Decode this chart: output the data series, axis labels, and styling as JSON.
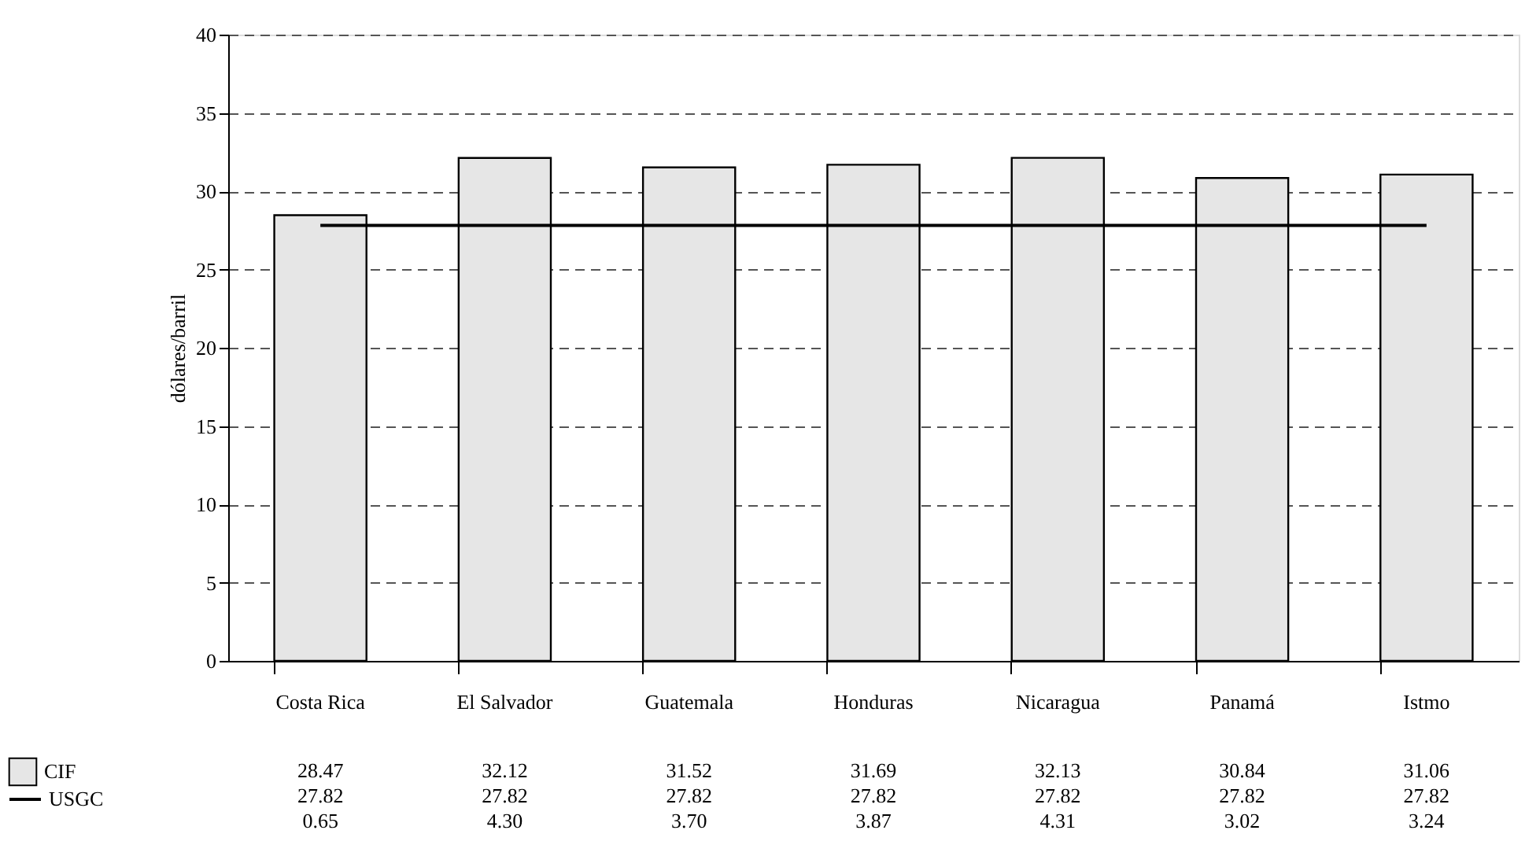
{
  "chart_data": {
    "type": "bar",
    "ylabel": "dólares/barril",
    "categories": [
      "Costa Rica",
      "El Salvador",
      "Guatemala",
      "Honduras",
      "Nicaragua",
      "Panamá",
      "Istmo"
    ],
    "series": [
      {
        "name": "CIF",
        "color": "#e6e6e6",
        "values": [
          28.47,
          32.12,
          31.52,
          31.69,
          32.13,
          30.84,
          31.06
        ]
      },
      {
        "name": "USGC",
        "type": "line",
        "color": "#000000",
        "values": [
          27.82,
          27.82,
          27.82,
          27.82,
          27.82,
          27.82,
          27.82
        ]
      }
    ],
    "ylim": [
      0,
      40
    ],
    "yticks": [
      0,
      5,
      10,
      15,
      20,
      25,
      30,
      35,
      40
    ],
    "grid": "y",
    "line_style": "solid",
    "marker": "none",
    "data_labels": true,
    "legend": "bottom",
    "annotations": [
      "0.65",
      "4.30",
      "3.70",
      "3.87",
      "4.31",
      "3.02",
      "3.24"
    ]
  }
}
